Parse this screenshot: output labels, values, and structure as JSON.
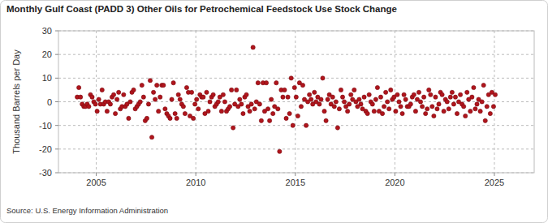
{
  "chart_data": {
    "type": "scatter",
    "title": "Monthly Gulf Coast (PADD 3) Other Oils for Petrochemical Feedstock Use Stock Change",
    "y_label": "Thousand Barrels per Day",
    "source": "Source: U.S. Energy Information Administration",
    "color": "#b0151c",
    "marker": "circle",
    "grid": true,
    "xlim": [
      2003.1,
      2027.0
    ],
    "xticks": [
      2005,
      2010,
      2015,
      2020,
      2025
    ],
    "ylim": [
      -30,
      30
    ],
    "yticks": [
      -30,
      -20,
      -10,
      0,
      10,
      20,
      30
    ],
    "x": [
      2004.042,
      2004.125,
      2004.208,
      2004.292,
      2004.375,
      2004.458,
      2004.542,
      2004.625,
      2004.708,
      2004.792,
      2004.875,
      2004.958,
      2005.042,
      2005.125,
      2005.208,
      2005.292,
      2005.375,
      2005.458,
      2005.542,
      2005.625,
      2005.708,
      2005.792,
      2005.875,
      2005.958,
      2006.042,
      2006.125,
      2006.208,
      2006.292,
      2006.375,
      2006.458,
      2006.542,
      2006.625,
      2006.708,
      2006.792,
      2006.875,
      2006.958,
      2007.042,
      2007.125,
      2007.208,
      2007.292,
      2007.375,
      2007.458,
      2007.542,
      2007.625,
      2007.708,
      2007.792,
      2007.875,
      2007.958,
      2008.042,
      2008.125,
      2008.208,
      2008.292,
      2008.375,
      2008.458,
      2008.542,
      2008.625,
      2008.708,
      2008.792,
      2008.875,
      2008.958,
      2009.042,
      2009.125,
      2009.208,
      2009.292,
      2009.375,
      2009.458,
      2009.542,
      2009.625,
      2009.708,
      2009.792,
      2009.875,
      2009.958,
      2010.042,
      2010.125,
      2010.208,
      2010.292,
      2010.375,
      2010.458,
      2010.542,
      2010.625,
      2010.708,
      2010.792,
      2010.875,
      2010.958,
      2011.042,
      2011.125,
      2011.208,
      2011.292,
      2011.375,
      2011.458,
      2011.542,
      2011.625,
      2011.708,
      2011.792,
      2011.875,
      2011.958,
      2012.042,
      2012.125,
      2012.208,
      2012.292,
      2012.375,
      2012.458,
      2012.542,
      2012.625,
      2012.708,
      2012.792,
      2012.875,
      2012.958,
      2013.042,
      2013.125,
      2013.208,
      2013.292,
      2013.375,
      2013.458,
      2013.542,
      2013.625,
      2013.708,
      2013.792,
      2013.875,
      2013.958,
      2014.042,
      2014.125,
      2014.208,
      2014.292,
      2014.375,
      2014.458,
      2014.542,
      2014.625,
      2014.708,
      2014.792,
      2014.875,
      2014.958,
      2015.042,
      2015.125,
      2015.208,
      2015.292,
      2015.375,
      2015.458,
      2015.542,
      2015.625,
      2015.708,
      2015.792,
      2015.875,
      2015.958,
      2016.042,
      2016.125,
      2016.208,
      2016.292,
      2016.375,
      2016.458,
      2016.542,
      2016.625,
      2016.708,
      2016.792,
      2016.875,
      2016.958,
      2017.042,
      2017.125,
      2017.208,
      2017.292,
      2017.375,
      2017.458,
      2017.542,
      2017.625,
      2017.708,
      2017.792,
      2017.875,
      2017.958,
      2018.042,
      2018.125,
      2018.208,
      2018.292,
      2018.375,
      2018.458,
      2018.542,
      2018.625,
      2018.708,
      2018.792,
      2018.875,
      2018.958,
      2019.042,
      2019.125,
      2019.208,
      2019.292,
      2019.375,
      2019.458,
      2019.542,
      2019.625,
      2019.708,
      2019.792,
      2019.875,
      2019.958,
      2020.042,
      2020.125,
      2020.208,
      2020.292,
      2020.375,
      2020.458,
      2020.542,
      2020.625,
      2020.708,
      2020.792,
      2020.875,
      2020.958,
      2021.042,
      2021.125,
      2021.208,
      2021.292,
      2021.375,
      2021.458,
      2021.542,
      2021.625,
      2021.708,
      2021.792,
      2021.875,
      2021.958,
      2022.042,
      2022.125,
      2022.208,
      2022.292,
      2022.375,
      2022.458,
      2022.542,
      2022.625,
      2022.708,
      2022.792,
      2022.875,
      2022.958,
      2023.042,
      2023.125,
      2023.208,
      2023.292,
      2023.375,
      2023.458,
      2023.542,
      2023.625,
      2023.708,
      2023.792,
      2023.875,
      2023.958,
      2024.042,
      2024.125,
      2024.208,
      2024.292,
      2024.375,
      2024.458,
      2024.542,
      2024.625,
      2024.708,
      2024.792,
      2024.875,
      2024.958,
      2025.042
    ],
    "values": [
      2,
      6,
      2,
      -1,
      -2,
      -2,
      -1,
      -2,
      3,
      2,
      0,
      -1,
      -4,
      1,
      -1,
      5,
      -1,
      0,
      -4,
      0,
      -1,
      2,
      3,
      -5,
      1,
      4,
      -3,
      -2,
      3,
      -2,
      -1,
      -7,
      0,
      4,
      5,
      -3,
      -2,
      -1,
      0,
      7,
      2,
      -8,
      -7,
      -1,
      9,
      -15,
      4,
      1,
      7,
      -4,
      2,
      7,
      7,
      -3,
      -5,
      -6,
      -7,
      1,
      8,
      -5,
      -7,
      3,
      1,
      -1,
      -2,
      -5,
      6,
      4,
      -6,
      4,
      -7,
      -1,
      1,
      -3,
      3,
      2,
      2,
      -5,
      4,
      -4,
      0,
      2,
      3,
      -2,
      -1,
      0,
      2,
      -4,
      3,
      0,
      -4,
      -3,
      -2,
      5,
      -11,
      -1,
      5,
      -2,
      1,
      -1,
      -5,
      2,
      3,
      -2,
      -4,
      -1,
      23,
      -3,
      0,
      8,
      -1,
      -8,
      8,
      -4,
      8,
      -3,
      -8,
      1,
      -5,
      -2,
      8,
      -3,
      -21,
      5,
      2,
      5,
      -7,
      2,
      -5,
      10,
      -10,
      6,
      2,
      -6,
      8,
      -2,
      7,
      1,
      -10,
      0,
      3,
      1,
      -1,
      4,
      0,
      2,
      -1,
      1,
      10,
      -4,
      -8,
      1,
      3,
      -1,
      2,
      -2,
      0,
      -11,
      -3,
      5,
      2,
      0,
      -2,
      -4,
      -1,
      3,
      1,
      5,
      0,
      -2,
      1,
      -1,
      -3,
      2,
      -4,
      -5,
      3,
      0,
      -1,
      -4,
      1,
      6,
      -4,
      2,
      -5,
      -2,
      4,
      0,
      -3,
      5,
      1,
      2,
      -4,
      3,
      0,
      -2,
      -5,
      3,
      1,
      -2,
      -2,
      -1,
      2,
      3,
      -4,
      1,
      4,
      0,
      -2,
      2,
      -5,
      -3,
      5,
      3,
      -2,
      -6,
      2,
      -3,
      -1,
      4,
      3,
      -4,
      1,
      0,
      -3,
      2,
      4,
      -1,
      2,
      -5,
      0,
      3,
      -1,
      -2,
      -6,
      4,
      1,
      -4,
      2,
      6,
      -3,
      -1,
      1,
      -4,
      0,
      7,
      -8,
      -2,
      3,
      -5,
      4,
      -2,
      3
    ]
  }
}
